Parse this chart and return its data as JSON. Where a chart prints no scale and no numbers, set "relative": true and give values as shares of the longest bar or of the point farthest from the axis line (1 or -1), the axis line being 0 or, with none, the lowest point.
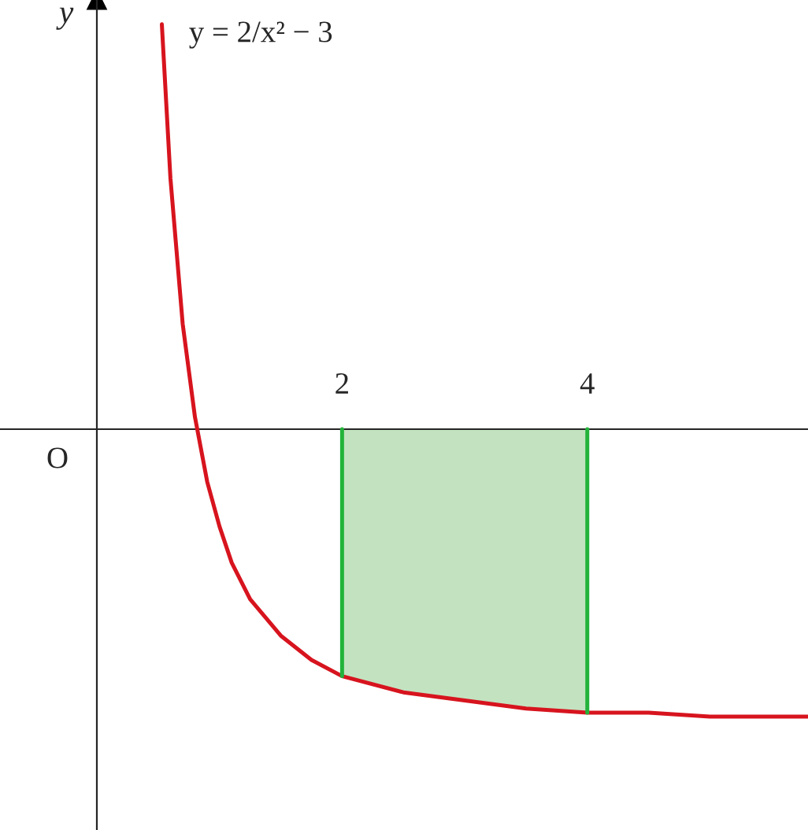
{
  "chart_data": {
    "type": "line",
    "relative": true,
    "ylabel": "y",
    "xlim": [
      -0.79,
      5.8
    ],
    "xticks": [
      2,
      4
    ],
    "grid": false,
    "legend": false,
    "marker": "none",
    "line_style": "solid",
    "annotations": [
      "y = 2/x² − 3",
      "O"
    ],
    "series": [
      {
        "color": "#d7141e",
        "x": [
          0.53,
          0.6,
          0.7,
          0.8,
          0.9,
          1.0,
          1.1,
          1.25,
          1.5,
          1.75,
          2,
          2.5,
          3,
          3.5,
          4,
          4.5,
          5,
          5.5,
          5.8
        ],
        "values": [
          1.0,
          0.62,
          0.26,
          0.03,
          -0.13,
          -0.24,
          -0.33,
          -0.42,
          -0.51,
          -0.57,
          -0.61,
          -0.65,
          -0.67,
          -0.69,
          -0.7,
          -0.7,
          -0.71,
          -0.71,
          -0.71
        ]
      },
      {
        "type": "area",
        "color": "#c3e2c0",
        "x": [
          2,
          2.5,
          3,
          3.5,
          4
        ],
        "values": [
          -0.61,
          -0.65,
          -0.67,
          -0.69,
          -0.7
        ]
      },
      {
        "type": "line",
        "color": "#22b33a",
        "x": [
          2,
          2
        ],
        "values": [
          0,
          -0.61
        ]
      },
      {
        "type": "line",
        "color": "#22b33a",
        "x": [
          4,
          4
        ],
        "values": [
          0,
          -0.7
        ]
      }
    ]
  }
}
